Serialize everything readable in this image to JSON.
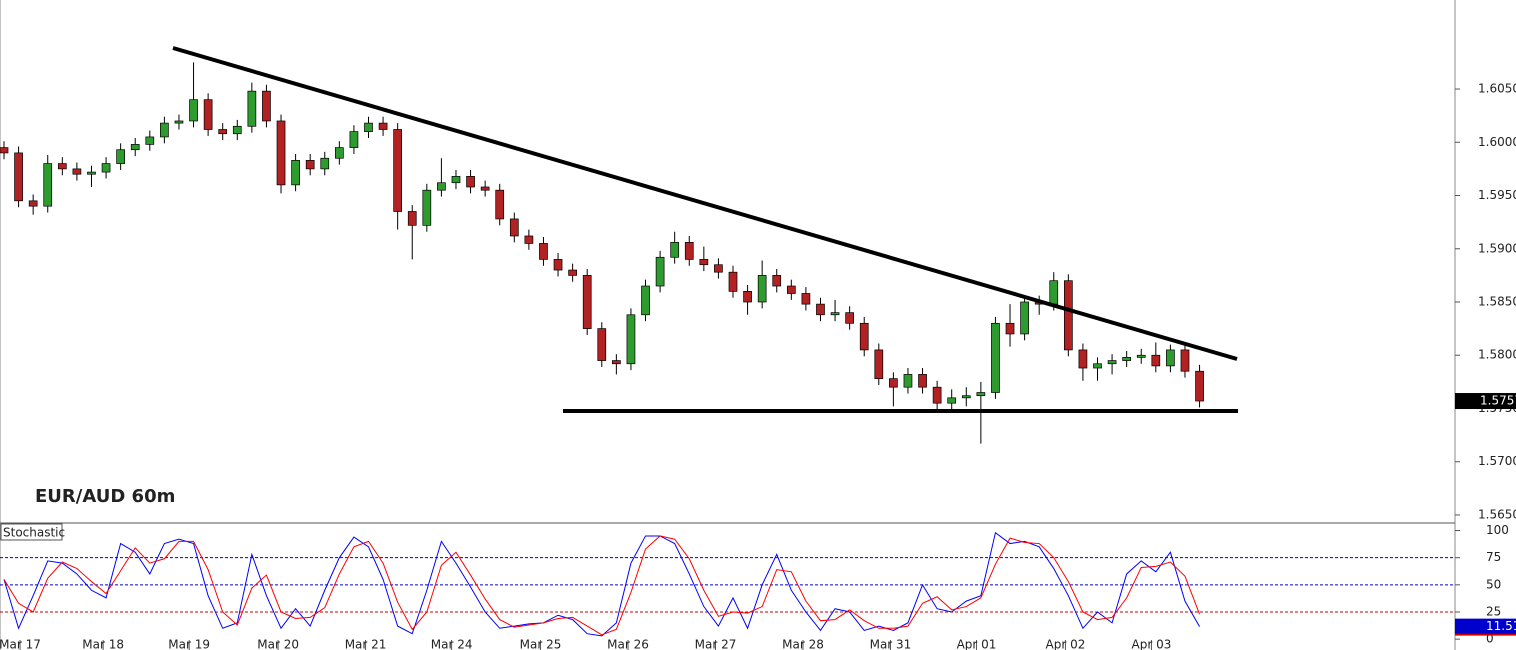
{
  "chart_data": [
    {
      "type": "candlestick",
      "title": "EUR/AUD 60m",
      "up_color": "#2e9b2e",
      "down_color": "#b22222",
      "ylim": [
        1.56434,
        1.61336
      ],
      "yticks": [
        {
          "value": 1.605,
          "label": "1.6050"
        },
        {
          "value": 1.6,
          "label": "1.6000"
        },
        {
          "value": 1.595,
          "label": "1.5950"
        },
        {
          "value": 1.59,
          "label": "1.5900"
        },
        {
          "value": 1.585,
          "label": "1.5850"
        },
        {
          "value": 1.58,
          "label": "1.5800"
        },
        {
          "value": 1.575,
          "label": "1.5750"
        },
        {
          "value": 1.57,
          "label": "1.5700"
        },
        {
          "value": 1.565,
          "label": "1.5650"
        }
      ],
      "xticks": [
        {
          "value": 1.1,
          "label": "Mar 17"
        },
        {
          "value": 6.8,
          "label": "Mar 18"
        },
        {
          "value": 12.7,
          "label": "Mar 19"
        },
        {
          "value": 18.8,
          "label": "Mar 20"
        },
        {
          "value": 24.8,
          "label": "Mar 21"
        },
        {
          "value": 30.7,
          "label": "Mar 24"
        },
        {
          "value": 36.8,
          "label": "Mar 25"
        },
        {
          "value": 42.8,
          "label": "Mar 26"
        },
        {
          "value": 48.8,
          "label": "Mar 27"
        },
        {
          "value": 54.8,
          "label": "Mar 28"
        },
        {
          "value": 60.8,
          "label": "Mar 31"
        },
        {
          "value": 66.7,
          "label": "Apr 01"
        },
        {
          "value": 72.8,
          "label": "Apr 02"
        },
        {
          "value": 78.7,
          "label": "Apr 03"
        }
      ],
      "ohlc": [
        [
          1.5995,
          1.6001,
          1.5984,
          1.599
        ],
        [
          1.599,
          1.5996,
          1.5939,
          1.5945
        ],
        [
          1.5945,
          1.5951,
          1.5932,
          1.594
        ],
        [
          1.594,
          1.5988,
          1.5934,
          1.598
        ],
        [
          1.598,
          1.5986,
          1.5969,
          1.5975
        ],
        [
          1.5975,
          1.5981,
          1.5964,
          1.597
        ],
        [
          1.597,
          1.5978,
          1.5958,
          1.5972
        ],
        [
          1.5972,
          1.5986,
          1.5966,
          1.598
        ],
        [
          1.598,
          1.5999,
          1.5974,
          1.5993
        ],
        [
          1.5993,
          1.6004,
          1.5987,
          1.5998
        ],
        [
          1.5998,
          1.6011,
          1.5992,
          1.6005
        ],
        [
          1.6005,
          1.6024,
          1.5999,
          1.6018
        ],
        [
          1.6018,
          1.6026,
          1.6012,
          1.602
        ],
        [
          1.602,
          1.6075,
          1.6014,
          1.604
        ],
        [
          1.604,
          1.6046,
          1.6006,
          1.6012
        ],
        [
          1.6012,
          1.6018,
          1.6002,
          1.6008
        ],
        [
          1.6008,
          1.6021,
          1.6002,
          1.6015
        ],
        [
          1.6015,
          1.6056,
          1.6009,
          1.6048
        ],
        [
          1.6048,
          1.6054,
          1.6014,
          1.602
        ],
        [
          1.602,
          1.6026,
          1.5952,
          1.596
        ],
        [
          1.596,
          1.5989,
          1.5954,
          1.5983
        ],
        [
          1.5983,
          1.5989,
          1.5969,
          1.5975
        ],
        [
          1.5975,
          1.5991,
          1.5969,
          1.5985
        ],
        [
          1.5985,
          1.6001,
          1.5979,
          1.5995
        ],
        [
          1.5995,
          1.6016,
          1.5989,
          1.601
        ],
        [
          1.601,
          1.6024,
          1.6004,
          1.6018
        ],
        [
          1.6018,
          1.6024,
          1.6006,
          1.6012
        ],
        [
          1.6012,
          1.6018,
          1.5918,
          1.5935
        ],
        [
          1.5935,
          1.5941,
          1.589,
          1.5922
        ],
        [
          1.5922,
          1.5961,
          1.5916,
          1.5955
        ],
        [
          1.5955,
          1.5985,
          1.5949,
          1.5962
        ],
        [
          1.5962,
          1.5974,
          1.5956,
          1.5968
        ],
        [
          1.5968,
          1.5974,
          1.5952,
          1.5958
        ],
        [
          1.5958,
          1.5964,
          1.5949,
          1.5955
        ],
        [
          1.5955,
          1.5961,
          1.5922,
          1.5928
        ],
        [
          1.5928,
          1.5934,
          1.5906,
          1.5912
        ],
        [
          1.5912,
          1.5918,
          1.5899,
          1.5905
        ],
        [
          1.5905,
          1.5911,
          1.5884,
          1.589
        ],
        [
          1.589,
          1.5896,
          1.5874,
          1.588
        ],
        [
          1.588,
          1.5886,
          1.5869,
          1.5875
        ],
        [
          1.5875,
          1.5881,
          1.5819,
          1.5825
        ],
        [
          1.5825,
          1.5831,
          1.5789,
          1.5795
        ],
        [
          1.5795,
          1.5801,
          1.5782,
          1.5792
        ],
        [
          1.5792,
          1.5844,
          1.5786,
          1.5838
        ],
        [
          1.5838,
          1.5871,
          1.5832,
          1.5865
        ],
        [
          1.5865,
          1.5898,
          1.5859,
          1.5892
        ],
        [
          1.5892,
          1.5916,
          1.5886,
          1.5906
        ],
        [
          1.5906,
          1.5912,
          1.5884,
          1.589
        ],
        [
          1.589,
          1.5902,
          1.5879,
          1.5885
        ],
        [
          1.5885,
          1.5891,
          1.5872,
          1.5878
        ],
        [
          1.5878,
          1.5884,
          1.5854,
          1.586
        ],
        [
          1.586,
          1.5866,
          1.5838,
          1.585
        ],
        [
          1.585,
          1.5889,
          1.5844,
          1.5875
        ],
        [
          1.5875,
          1.5881,
          1.5859,
          1.5865
        ],
        [
          1.5865,
          1.5871,
          1.5852,
          1.5858
        ],
        [
          1.5858,
          1.5864,
          1.5842,
          1.5848
        ],
        [
          1.5848,
          1.5854,
          1.5832,
          1.5838
        ],
        [
          1.5838,
          1.5852,
          1.5832,
          1.584
        ],
        [
          1.584,
          1.5846,
          1.5824,
          1.583
        ],
        [
          1.583,
          1.5836,
          1.5799,
          1.5805
        ],
        [
          1.5805,
          1.5811,
          1.5772,
          1.5778
        ],
        [
          1.5778,
          1.5784,
          1.5752,
          1.577
        ],
        [
          1.577,
          1.5788,
          1.5764,
          1.5782
        ],
        [
          1.5782,
          1.5788,
          1.5764,
          1.577
        ],
        [
          1.577,
          1.5776,
          1.5748,
          1.5755
        ],
        [
          1.5755,
          1.5768,
          1.5749,
          1.576
        ],
        [
          1.576,
          1.577,
          1.5752,
          1.5762
        ],
        [
          1.5762,
          1.5775,
          1.5717,
          1.5765
        ],
        [
          1.5765,
          1.5836,
          1.5759,
          1.583
        ],
        [
          1.583,
          1.5848,
          1.5808,
          1.582
        ],
        [
          1.582,
          1.5856,
          1.5814,
          1.585
        ],
        [
          1.585,
          1.5856,
          1.5838,
          1.5848
        ],
        [
          1.5848,
          1.5878,
          1.5842,
          1.587
        ],
        [
          1.587,
          1.5876,
          1.5799,
          1.5805
        ],
        [
          1.5805,
          1.5811,
          1.5776,
          1.5788
        ],
        [
          1.5788,
          1.5798,
          1.5776,
          1.5792
        ],
        [
          1.5792,
          1.5801,
          1.5782,
          1.5795
        ],
        [
          1.5795,
          1.5804,
          1.5789,
          1.5798
        ],
        [
          1.5798,
          1.5806,
          1.5792,
          1.58
        ],
        [
          1.58,
          1.5812,
          1.5784,
          1.579
        ],
        [
          1.579,
          1.581,
          1.5784,
          1.5805
        ],
        [
          1.5805,
          1.5811,
          1.5779,
          1.5785
        ],
        [
          1.5785,
          1.5791,
          1.5751,
          1.5757
        ]
      ]
    },
    {
      "type": "line",
      "title": "Stochastic",
      "ylim": [
        -10,
        106
      ],
      "yticks": [
        0,
        25,
        50,
        75,
        100
      ],
      "levels": [
        {
          "value": 25,
          "color": "#cc0000"
        },
        {
          "value": 50,
          "color": "#0000cc"
        },
        {
          "value": 75,
          "color": "#0000cc"
        }
      ],
      "series": [
        {
          "color": "#0000ff",
          "values": [
            55,
            10,
            40,
            72,
            70,
            60,
            45,
            38,
            88,
            80,
            60,
            88,
            92,
            88,
            40,
            10,
            15,
            78,
            40,
            10,
            28,
            12,
            45,
            75,
            94,
            85,
            55,
            12,
            5,
            45,
            90,
            70,
            48,
            25,
            10,
            12,
            14,
            15,
            22,
            18,
            5,
            3,
            15,
            70,
            95,
            95,
            88,
            60,
            30,
            12,
            38,
            10,
            50,
            78,
            45,
            25,
            8,
            28,
            25,
            8,
            12,
            8,
            15,
            50,
            28,
            25,
            35,
            40,
            98,
            88,
            90,
            85,
            65,
            40,
            10,
            25,
            15,
            60,
            72,
            62,
            80,
            35,
            11.51
          ]
        },
        {
          "color": "#ff0000",
          "values": [
            55,
            33,
            25,
            56,
            71,
            65,
            53,
            42,
            63,
            84,
            70,
            74,
            90,
            90,
            64,
            25,
            13,
            47,
            59,
            25,
            19,
            20,
            29,
            60,
            85,
            90,
            70,
            34,
            9,
            25,
            68,
            80,
            59,
            37,
            18,
            11,
            13,
            15,
            19,
            20,
            12,
            4,
            9,
            43,
            83,
            95,
            92,
            74,
            45,
            21,
            25,
            24,
            30,
            64,
            62,
            35,
            17,
            18,
            27,
            17,
            10,
            10,
            12,
            33,
            39,
            27,
            30,
            38,
            69,
            93,
            89,
            88,
            75,
            53,
            25,
            18,
            20,
            38,
            66,
            67,
            71,
            58,
            23
          ]
        }
      ]
    }
  ]
}
